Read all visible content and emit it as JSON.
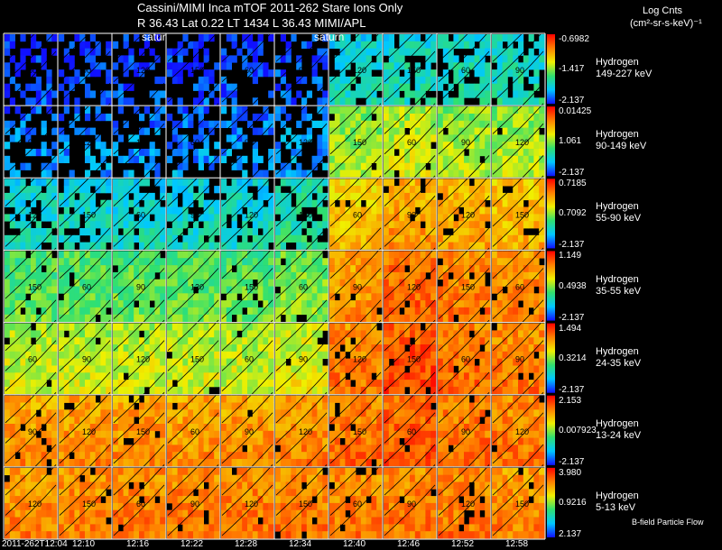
{
  "header": {
    "title_line1": "Cassini/MIMI Inca mTOF  2011-262    Stare    Ions Only",
    "title_line2": "R           36.43 Lat 0.22 LT 1434 L          36.43   MIMI/APL",
    "saturn_label_a": "satur",
    "saturn_label_b": "saturn",
    "units_title": "Log Cnts",
    "units": "(cm²-sr-s-keV)⁻¹"
  },
  "chart_data": {
    "type": "heatmap",
    "title": "Cassini/MIMI Inca mTOF 2011-262 Stare Ions Only",
    "x_tick_labels": [
      "2011-262T12:04",
      "12:10",
      "12:16",
      "12:22",
      "12:28",
      "12:34",
      "12:40",
      "12:46",
      "12:52",
      "12:58"
    ],
    "contour_labels": [
      "60",
      "90",
      "120",
      "150"
    ],
    "annotation": "B-field Particle Flow",
    "rows": [
      {
        "species": "Hydrogen",
        "energy": "149-227 keV",
        "cb_max": "-0.6982",
        "cb_mid": "-1.417",
        "cb_min": "-2.137",
        "levels": [
          0.04,
          0.05,
          0.05,
          0.05,
          0.05,
          0.07,
          0.28,
          0.3,
          0.3,
          0.3
        ]
      },
      {
        "species": "Hydrogen",
        "energy": "90-149 keV",
        "cb_max": "0.01425",
        "cb_mid": "1.061",
        "cb_min": "-2.137",
        "levels": [
          0.12,
          0.13,
          0.13,
          0.13,
          0.13,
          0.15,
          0.5,
          0.55,
          0.52,
          0.52
        ]
      },
      {
        "species": "Hydrogen",
        "energy": "55-90 keV",
        "cb_max": "0.7185",
        "cb_mid": "0.7092",
        "cb_min": "-2.137",
        "levels": [
          0.28,
          0.28,
          0.28,
          0.28,
          0.28,
          0.34,
          0.68,
          0.74,
          0.72,
          0.7
        ]
      },
      {
        "species": "Hydrogen",
        "energy": "35-55 keV",
        "cb_max": "1.149",
        "cb_mid": "0.4938",
        "cb_min": "-2.137",
        "levels": [
          0.44,
          0.44,
          0.44,
          0.44,
          0.44,
          0.48,
          0.76,
          0.84,
          0.8,
          0.78
        ]
      },
      {
        "species": "Hydrogen",
        "energy": "24-35 keV",
        "cb_max": "1.494",
        "cb_mid": "0.3214",
        "cb_min": "-2.137",
        "levels": [
          0.55,
          0.55,
          0.55,
          0.55,
          0.55,
          0.58,
          0.8,
          0.88,
          0.82,
          0.8
        ]
      },
      {
        "species": "Hydrogen",
        "energy": "13-24 keV",
        "cb_max": "2.153",
        "cb_mid": "0.007923",
        "cb_min": "-2.137",
        "levels": [
          0.76,
          0.76,
          0.76,
          0.76,
          0.76,
          0.78,
          0.82,
          0.86,
          0.82,
          0.8
        ]
      },
      {
        "species": "Hydrogen",
        "energy": "5-13 keV",
        "cb_max": "3.980",
        "cb_mid": "0.9216",
        "cb_min": "2.137",
        "levels": [
          0.78,
          0.79,
          0.8,
          0.8,
          0.8,
          0.8,
          0.8,
          0.8,
          0.8,
          0.78
        ]
      }
    ]
  }
}
